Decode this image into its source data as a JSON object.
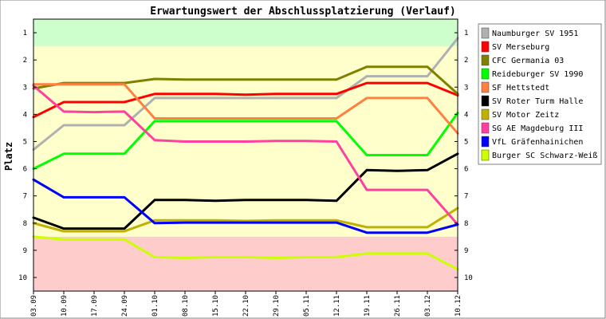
{
  "chart_data": {
    "type": "line",
    "title": "Erwartungswert der Abschlussplatzierung (Verlauf)",
    "ylabel": "Platz",
    "xlabel": "",
    "y_ticks": [
      1,
      2,
      3,
      4,
      5,
      6,
      7,
      8,
      9,
      10
    ],
    "ylim": [
      0.5,
      10.5
    ],
    "y_inverted": true,
    "grid": false,
    "legend_position": "right",
    "zones": [
      {
        "from": 0.5,
        "to": 1.5,
        "color": "#ccffcc"
      },
      {
        "from": 1.5,
        "to": 8.5,
        "color": "#ffffcc"
      },
      {
        "from": 8.5,
        "to": 10.5,
        "color": "#ffcccc"
      }
    ],
    "categories": [
      "03.09",
      "10.09",
      "17.09",
      "24.09",
      "01.10",
      "08.10",
      "15.10",
      "22.10",
      "29.10",
      "05.11",
      "12.11",
      "19.11",
      "26.11",
      "03.12",
      "10.12"
    ],
    "series": [
      {
        "name": "Naumburger SV 1951",
        "color": "#b0b0b0",
        "values": [
          5.3,
          4.4,
          4.4,
          4.4,
          3.4,
          3.4,
          3.4,
          3.4,
          3.4,
          3.4,
          3.4,
          2.6,
          2.6,
          2.6,
          1.2
        ]
      },
      {
        "name": "SV Merseburg",
        "color": "#ff0000",
        "values": [
          4.1,
          3.55,
          3.55,
          3.55,
          3.25,
          3.25,
          3.25,
          3.28,
          3.25,
          3.25,
          3.25,
          2.85,
          2.85,
          2.85,
          3.3
        ]
      },
      {
        "name": "CFC Germania 03",
        "color": "#808000",
        "values": [
          3.05,
          2.85,
          2.85,
          2.85,
          2.7,
          2.72,
          2.72,
          2.72,
          2.72,
          2.72,
          2.72,
          2.25,
          2.25,
          2.25,
          3.25
        ]
      },
      {
        "name": "Reideburger SV 1990",
        "color": "#00ff00",
        "values": [
          6.0,
          5.45,
          5.45,
          5.45,
          4.25,
          4.25,
          4.25,
          4.25,
          4.25,
          4.25,
          4.25,
          5.5,
          5.5,
          5.5,
          3.95
        ]
      },
      {
        "name": "SF Hettstedt",
        "color": "#ff8040",
        "values": [
          2.9,
          2.9,
          2.9,
          2.9,
          4.15,
          4.15,
          4.15,
          4.15,
          4.15,
          4.15,
          4.15,
          3.4,
          3.4,
          3.4,
          4.7
        ]
      },
      {
        "name": "SV Roter Turm Halle",
        "color": "#000000",
        "values": [
          7.8,
          8.2,
          8.2,
          8.2,
          7.15,
          7.15,
          7.18,
          7.15,
          7.15,
          7.15,
          7.18,
          6.05,
          6.08,
          6.05,
          5.45
        ]
      },
      {
        "name": "SV Motor Zeitz",
        "color": "#c0b000",
        "values": [
          8.0,
          8.3,
          8.3,
          8.3,
          7.9,
          7.9,
          7.9,
          7.92,
          7.9,
          7.9,
          7.9,
          8.15,
          8.15,
          8.15,
          7.45
        ]
      },
      {
        "name": "SG AE Magdeburg III",
        "color": "#ff40a0",
        "values": [
          2.95,
          3.9,
          3.92,
          3.9,
          4.95,
          5.0,
          5.0,
          5.0,
          4.98,
          4.98,
          5.0,
          6.78,
          6.78,
          6.78,
          8.05
        ]
      },
      {
        "name": "VfL Gräfenhainichen",
        "color": "#0000ff",
        "values": [
          6.4,
          7.05,
          7.05,
          7.05,
          8.0,
          7.98,
          7.98,
          7.98,
          7.98,
          7.98,
          7.98,
          8.35,
          8.35,
          8.35,
          8.05
        ]
      },
      {
        "name": "Burger SC Schwarz-Weiß",
        "color": "#ccff00",
        "values": [
          8.5,
          8.6,
          8.6,
          8.6,
          9.25,
          9.28,
          9.25,
          9.25,
          9.28,
          9.25,
          9.25,
          9.12,
          9.12,
          9.12,
          9.7
        ]
      }
    ]
  }
}
